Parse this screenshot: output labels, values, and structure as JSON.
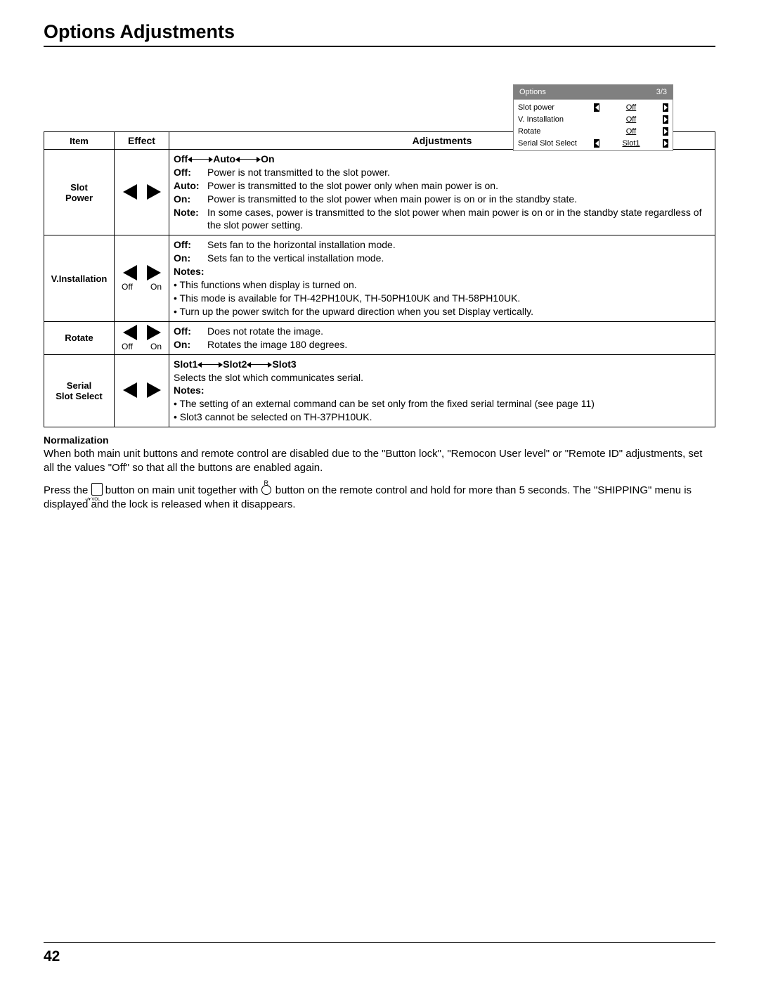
{
  "title": "Options Adjustments",
  "page_number": "42",
  "osd": {
    "header_title": "Options",
    "header_page": "3/3",
    "rows": [
      {
        "label": "Slot power",
        "value": "Off",
        "left": true,
        "right": true
      },
      {
        "label": "V. Installation",
        "value": "Off",
        "left": false,
        "right": true
      },
      {
        "label": "Rotate",
        "value": "Off",
        "left": false,
        "right": true
      },
      {
        "label": "Serial Slot Select",
        "value": "Slot1",
        "left": true,
        "right": true
      }
    ]
  },
  "table": {
    "headers": {
      "item": "Item",
      "effect": "Effect",
      "adjustments": "Adjustments"
    },
    "rows": [
      {
        "item": "Slot Power",
        "effect_left": "",
        "effect_right": "",
        "show_eff_labels": false,
        "seq": [
          "Off",
          "Auto",
          "On"
        ],
        "defs": [
          {
            "k": "Off:",
            "v": "Power is not transmitted to the slot power."
          },
          {
            "k": "Auto:",
            "v": "Power is transmitted to the slot power only when main power is on."
          },
          {
            "k": "On:",
            "v": "Power is transmitted to the slot power when main power is on or in the standby state."
          },
          {
            "k": "Note:",
            "v": "In some cases, power is transmitted to the slot power when main power is on or in the standby state regardless of the slot power setting."
          }
        ],
        "notes_label": "",
        "bullets": []
      },
      {
        "item": "V.Installation",
        "effect_left": "Off",
        "effect_right": "On",
        "show_eff_labels": true,
        "seq": [],
        "defs": [
          {
            "k": "Off:",
            "v": "Sets fan to the horizontal installation mode."
          },
          {
            "k": "On:",
            "v": "Sets fan to the vertical installation mode."
          }
        ],
        "notes_label": "Notes:",
        "bullets": [
          "This functions when display is turned on.",
          "This mode is available for TH-42PH10UK, TH-50PH10UK and TH-58PH10UK.",
          "Turn up the power switch for the upward direction when you set Display vertically."
        ]
      },
      {
        "item": "Rotate",
        "effect_left": "Off",
        "effect_right": "On",
        "show_eff_labels": true,
        "seq": [],
        "defs": [
          {
            "k": "Off:",
            "v": "Does not rotate the image."
          },
          {
            "k": "On:",
            "v": "Rotates the image 180 degrees."
          }
        ],
        "notes_label": "",
        "bullets": []
      },
      {
        "item": "Serial Slot Select",
        "effect_left": "",
        "effect_right": "",
        "show_eff_labels": false,
        "seq": [
          "Slot1",
          "Slot2",
          "Slot3"
        ],
        "seq_text_after": "Selects the slot which communicates serial.",
        "defs": [],
        "notes_label": "Notes:",
        "bullets": [
          "The setting of an external command can be set only from the fixed serial terminal (see page 11)",
          "Slot3 cannot be selected on TH-37PH10UK."
        ]
      }
    ]
  },
  "normalization": {
    "heading": "Normalization",
    "p1": "When both main unit buttons and remote control are disabled due to the \"Button lock\", \"Remocon User level\" or \"Remote ID\" adjustments, set all the values \"Off\" so that all the buttons are enabled again.",
    "p2_a": "Press the ",
    "p2_b": " button on main unit together with ",
    "p2_c": " button on the remote control and hold for more than 5 seconds. The \"SHIPPING\" menu is displayed and the lock is released when it disappears.",
    "round_label": "R"
  }
}
